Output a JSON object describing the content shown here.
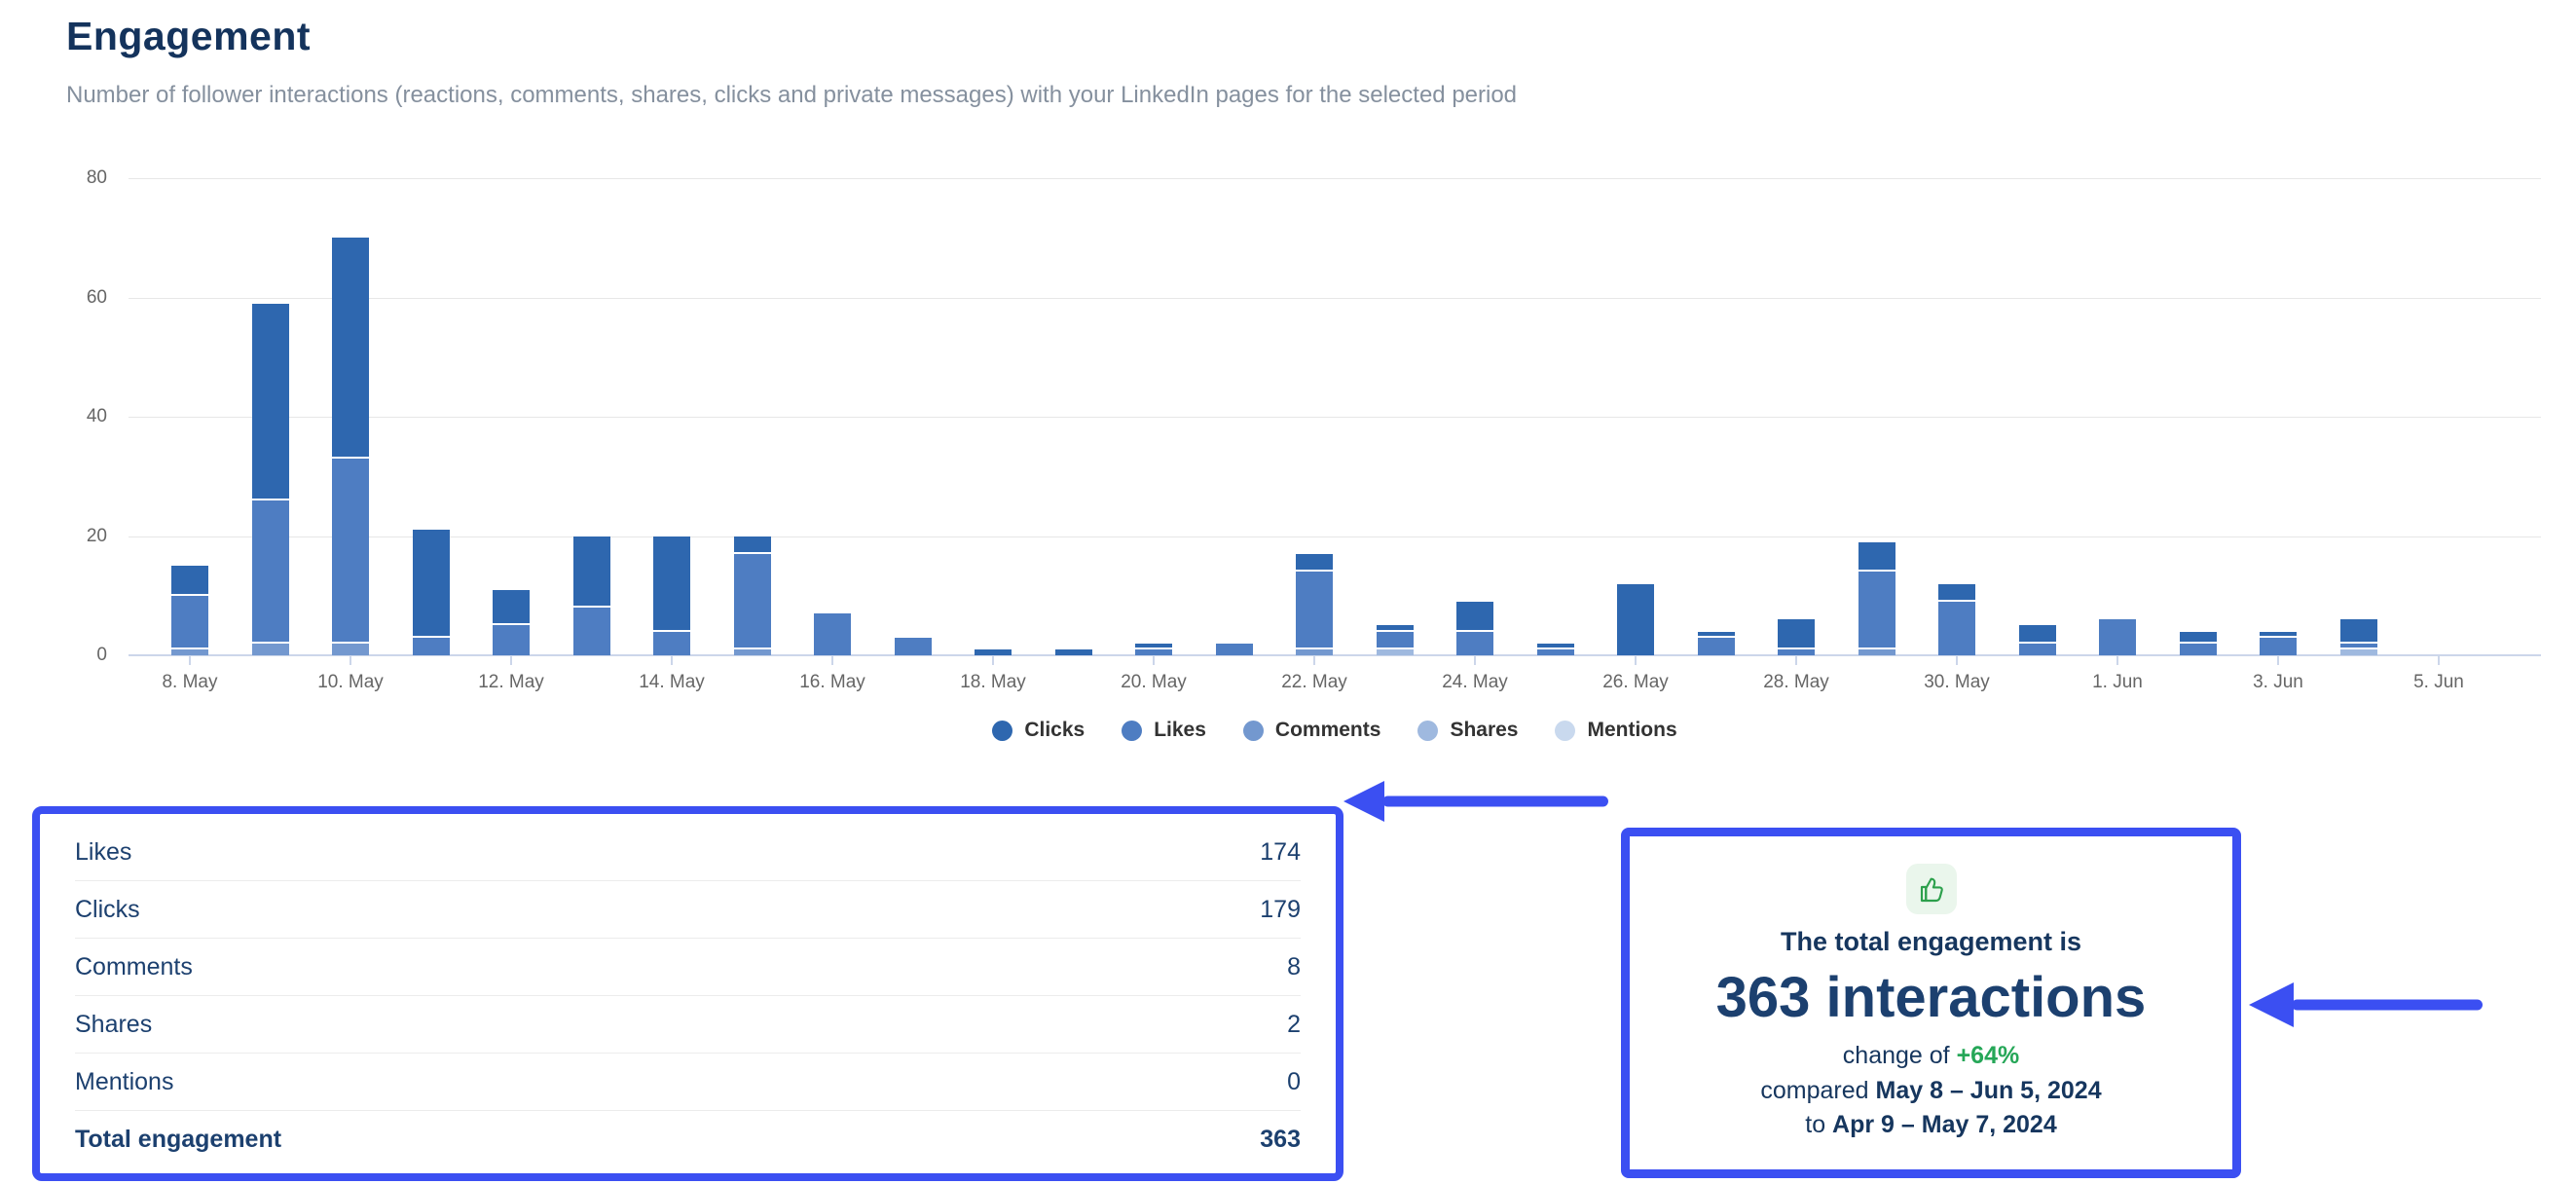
{
  "page": {
    "title": "Engagement",
    "subtitle": "Number of follower interactions (reactions, comments, shares, clicks and private messages) with your LinkedIn pages for the selected period"
  },
  "chart_data": {
    "type": "bar",
    "stacked": true,
    "title": "Engagement",
    "xlabel": "",
    "ylabel": "",
    "ylim": [
      0,
      80
    ],
    "y_ticks": [
      0,
      20,
      40,
      60,
      80
    ],
    "grid": true,
    "legend_position": "bottom",
    "categories": [
      "8. May",
      "9. May",
      "10. May",
      "11. May",
      "12. May",
      "13. May",
      "14. May",
      "15. May",
      "16. May",
      "17. May",
      "18. May",
      "19. May",
      "20. May",
      "21. May",
      "22. May",
      "23. May",
      "24. May",
      "25. May",
      "26. May",
      "27. May",
      "28. May",
      "29. May",
      "30. May",
      "31. May",
      "1. Jun",
      "2. Jun",
      "3. Jun",
      "4. Jun",
      "5. Jun"
    ],
    "x_labels_every": 2,
    "stack_order_bottom_to_top": [
      "Mentions",
      "Shares",
      "Comments",
      "Likes",
      "Clicks"
    ],
    "series": [
      {
        "name": "Clicks",
        "color": "#2e67af",
        "total": 179,
        "values": [
          5,
          33,
          37,
          18,
          6,
          12,
          16,
          3,
          0,
          0,
          1,
          1,
          1,
          0,
          3,
          1,
          5,
          1,
          12,
          1,
          5,
          5,
          3,
          3,
          0,
          2,
          1,
          4,
          0
        ]
      },
      {
        "name": "Likes",
        "color": "#4e7dc2",
        "total": 174,
        "values": [
          9,
          24,
          31,
          3,
          5,
          8,
          4,
          16,
          7,
          3,
          0,
          0,
          1,
          2,
          13,
          3,
          4,
          1,
          0,
          3,
          1,
          13,
          9,
          2,
          6,
          2,
          3,
          1,
          0
        ]
      },
      {
        "name": "Comments",
        "color": "#7398cf",
        "total": 8,
        "values": [
          1,
          2,
          2,
          0,
          0,
          0,
          0,
          1,
          0,
          0,
          0,
          0,
          0,
          0,
          1,
          0,
          0,
          0,
          0,
          0,
          0,
          1,
          0,
          0,
          0,
          0,
          0,
          0,
          0
        ]
      },
      {
        "name": "Shares",
        "color": "#9fb9df",
        "total": 2,
        "values": [
          0,
          0,
          0,
          0,
          0,
          0,
          0,
          0,
          0,
          0,
          0,
          0,
          0,
          0,
          0,
          1,
          0,
          0,
          0,
          0,
          0,
          0,
          0,
          0,
          0,
          0,
          0,
          1,
          0
        ]
      },
      {
        "name": "Mentions",
        "color": "#c9d9ee",
        "total": 0,
        "values": [
          0,
          0,
          0,
          0,
          0,
          0,
          0,
          0,
          0,
          0,
          0,
          0,
          0,
          0,
          0,
          0,
          0,
          0,
          0,
          0,
          0,
          0,
          0,
          0,
          0,
          0,
          0,
          0,
          0
        ]
      }
    ]
  },
  "summary_table": {
    "rows": [
      {
        "label": "Likes",
        "value": "174"
      },
      {
        "label": "Clicks",
        "value": "179"
      },
      {
        "label": "Comments",
        "value": "8"
      },
      {
        "label": "Shares",
        "value": "2"
      },
      {
        "label": "Mentions",
        "value": "0"
      }
    ],
    "total": {
      "label": "Total engagement",
      "value": "363"
    }
  },
  "highlight_box": {
    "icon": "thumbs-up-icon",
    "line1": "The total engagement is",
    "big": "363 interactions",
    "change_prefix": "change of ",
    "change_value": "+64%",
    "compare_prefix": "compared ",
    "compare_range_new": "May 8 – Jun 5, 2024",
    "compare_to_prefix": "to ",
    "compare_range_old": "Apr 9 – May 7, 2024"
  },
  "colors": {
    "accent_blue": "#3b4ff2",
    "green": "#26a758",
    "thumb_green": "#2ca04c",
    "thumb_bg": "#eaf6ec",
    "navy": "#16365e",
    "axis_label": "#666666",
    "gridline": "#e7e7e7",
    "axis_line": "#ccd6ea"
  }
}
